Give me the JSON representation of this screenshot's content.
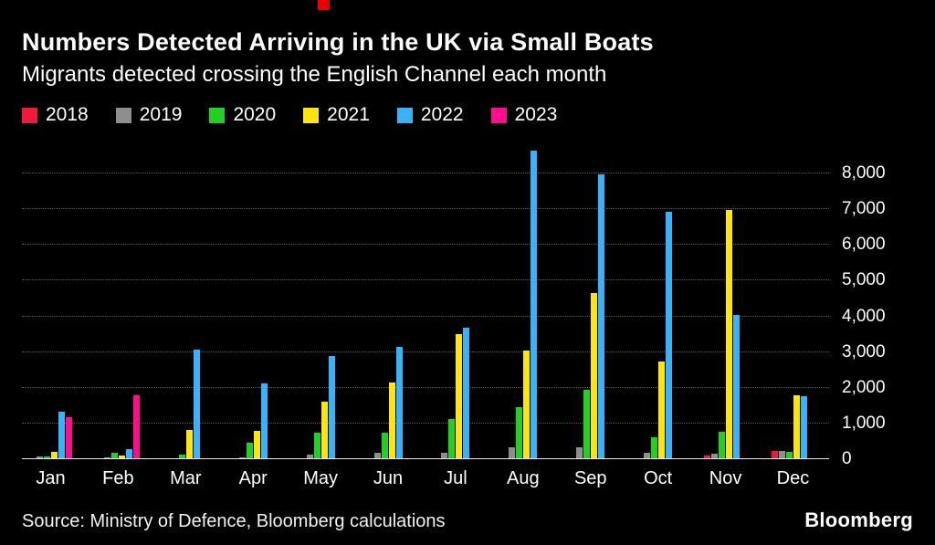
{
  "decorations": {
    "top_mark_color": "#e60000"
  },
  "chart_data": {
    "type": "bar",
    "title": "Numbers Detected Arriving in the UK via Small Boats",
    "subtitle": "Migrants detected crossing the English Channel each month",
    "categories": [
      "Jan",
      "Feb",
      "Mar",
      "Apr",
      "May",
      "Jun",
      "Jul",
      "Aug",
      "Sep",
      "Oct",
      "Nov",
      "Dec"
    ],
    "series": [
      {
        "name": "2018",
        "color": "#ef1a3e",
        "values": [
          0,
          0,
          0,
          0,
          25,
          40,
          30,
          20,
          15,
          10,
          100,
          230
        ]
      },
      {
        "name": "2019",
        "color": "#8e8e8e",
        "values": [
          90,
          65,
          45,
          55,
          140,
          190,
          190,
          335,
          340,
          190,
          155,
          240
        ]
      },
      {
        "name": "2020",
        "color": "#22cf22",
        "values": [
          95,
          180,
          140,
          480,
          750,
          750,
          1125,
          1470,
          1955,
          620,
          770,
          215
        ]
      },
      {
        "name": "2021",
        "color": "#ffe40d",
        "values": [
          225,
          100,
          830,
          800,
          1620,
          2160,
          3510,
          3050,
          4650,
          2750,
          6970,
          1800
        ]
      },
      {
        "name": "2022",
        "color": "#38b2f8",
        "values": [
          1340,
          280,
          3070,
          2120,
          2900,
          3140,
          3680,
          8640,
          7960,
          6920,
          4050,
          1780
        ]
      },
      {
        "name": "2023",
        "color": "#fe0d8c",
        "values": [
          1180,
          1800,
          null,
          null,
          null,
          null,
          null,
          null,
          null,
          null,
          null,
          null
        ]
      }
    ],
    "ylim": [
      0,
      8800
    ],
    "yticks": [
      0,
      1000,
      2000,
      3000,
      4000,
      5000,
      6000,
      7000,
      8000
    ],
    "ytick_labels": [
      "0",
      "1,000",
      "2,000",
      "3,000",
      "4,000",
      "5,000",
      "6,000",
      "7,000",
      "8,000"
    ],
    "grid": "dotted horizontal",
    "legend_position": "top-left",
    "value_axis_side": "right"
  },
  "footer": {
    "source": "Source: Ministry of Defence, Bloomberg calculations",
    "logo": "Bloomberg"
  }
}
